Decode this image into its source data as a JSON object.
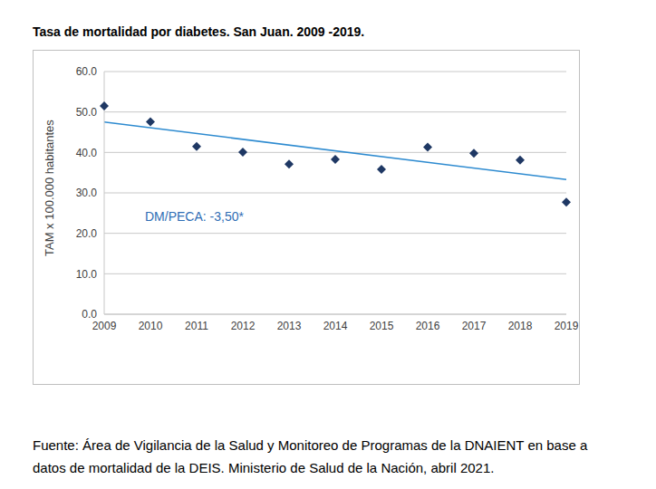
{
  "chart_data": {
    "type": "scatter",
    "title": "Tasa de mortalidad por diabetes. San Juan. 2009 -2019.",
    "y_label": "TAM x 100.000 habitantes",
    "annotation": "DM/PECA: -3,50*",
    "source": [
      "Fuente: Área de Vigilancia de la Salud y Monitoreo de Programas de la DNAIENT en base a",
      "datos de mortalidad de la DEIS. Ministerio de Salud de la Nación, abril 2021."
    ],
    "categories": [
      "2009",
      "2010",
      "2011",
      "2012",
      "2013",
      "2014",
      "2015",
      "2016",
      "2017",
      "2018",
      "2019"
    ],
    "series": [
      {
        "type": "scatter",
        "marker": "diamond",
        "color": "#1f3864",
        "values": [
          51.5,
          47.6,
          41.5,
          40.1,
          37.1,
          38.3,
          35.8,
          41.3,
          39.8,
          38.1,
          27.7
        ]
      },
      {
        "type": "line",
        "line_style": "solid",
        "color": "#2e8bd0",
        "values": [
          47.5,
          null,
          null,
          null,
          null,
          null,
          null,
          null,
          null,
          null,
          33.3
        ]
      }
    ],
    "ylim": [
      0,
      60
    ],
    "yticks": [
      {
        "value": 0,
        "label": "0.0"
      },
      {
        "value": 10,
        "label": "10.0"
      },
      {
        "value": 20,
        "label": "20.0"
      },
      {
        "value": 30,
        "label": "30.0"
      },
      {
        "value": 40,
        "label": "40.0"
      },
      {
        "value": 50,
        "label": "50.0"
      },
      {
        "value": 60,
        "label": "60.0"
      }
    ],
    "grid": true
  }
}
